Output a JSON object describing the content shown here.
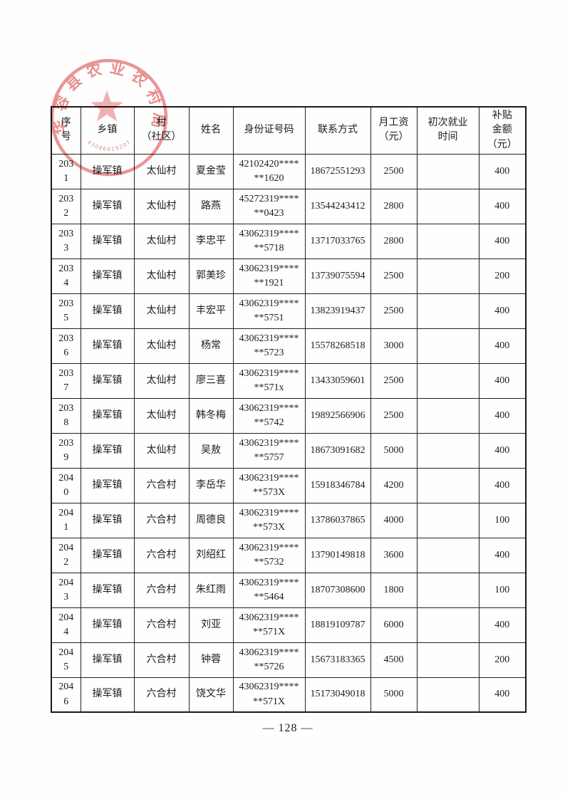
{
  "page": {
    "number_label": "— 128 —"
  },
  "seal": {
    "arc_text": "华容县农业农村局",
    "code": "430866192077",
    "color": "#e05555"
  },
  "table": {
    "column_keys": [
      "no",
      "town",
      "village",
      "name",
      "id",
      "phone",
      "salary",
      "first_employment",
      "subsidy"
    ],
    "headers": [
      "序\n号",
      "乡镇",
      "村\n（社区）",
      "姓名",
      "身份证号码",
      "联系方式",
      "月工资\n（元）",
      "初次就业\n时间",
      "补贴\n金额\n（元）"
    ],
    "rows": [
      {
        "no": "203\n1",
        "town": "操军镇",
        "village": "太仙村",
        "name": "夏金莹",
        "id": "42102420****\n**1620",
        "phone": "18672551293",
        "salary": "2500",
        "first_employment": "",
        "subsidy": "400"
      },
      {
        "no": "203\n2",
        "town": "操军镇",
        "village": "太仙村",
        "name": "路燕",
        "id": "45272319****\n**0423",
        "phone": "13544243412",
        "salary": "2800",
        "first_employment": "",
        "subsidy": "400"
      },
      {
        "no": "203\n3",
        "town": "操军镇",
        "village": "太仙村",
        "name": "李忠平",
        "id": "43062319****\n**5718",
        "phone": "13717033765",
        "salary": "2800",
        "first_employment": "",
        "subsidy": "400"
      },
      {
        "no": "203\n4",
        "town": "操军镇",
        "village": "太仙村",
        "name": "郭美珍",
        "id": "43062319****\n**1921",
        "phone": "13739075594",
        "salary": "2500",
        "first_employment": "",
        "subsidy": "200"
      },
      {
        "no": "203\n5",
        "town": "操军镇",
        "village": "太仙村",
        "name": "丰宏平",
        "id": "43062319****\n**5751",
        "phone": "13823919437",
        "salary": "2500",
        "first_employment": "",
        "subsidy": "400"
      },
      {
        "no": "203\n6",
        "town": "操军镇",
        "village": "太仙村",
        "name": "杨常",
        "id": "43062319****\n**5723",
        "phone": "15578268518",
        "salary": "3000",
        "first_employment": "",
        "subsidy": "400"
      },
      {
        "no": "203\n7",
        "town": "操军镇",
        "village": "太仙村",
        "name": "廖三喜",
        "id": "43062319****\n**571x",
        "phone": "13433059601",
        "salary": "2500",
        "first_employment": "",
        "subsidy": "400"
      },
      {
        "no": "203\n8",
        "town": "操军镇",
        "village": "太仙村",
        "name": "韩冬梅",
        "id": "43062319****\n**5742",
        "phone": "19892566906",
        "salary": "2500",
        "first_employment": "",
        "subsidy": "400"
      },
      {
        "no": "203\n9",
        "town": "操军镇",
        "village": "太仙村",
        "name": "吴敖",
        "id": "43062319****\n**5757",
        "phone": "18673091682",
        "salary": "5000",
        "first_employment": "",
        "subsidy": "400"
      },
      {
        "no": "204\n0",
        "town": "操军镇",
        "village": "六合村",
        "name": "李岳华",
        "id": "43062319****\n**573X",
        "phone": "15918346784",
        "salary": "4200",
        "first_employment": "",
        "subsidy": "400"
      },
      {
        "no": "204\n1",
        "town": "操军镇",
        "village": "六合村",
        "name": "周德良",
        "id": "43062319****\n**573X",
        "phone": "13786037865",
        "salary": "4000",
        "first_employment": "",
        "subsidy": "100"
      },
      {
        "no": "204\n2",
        "town": "操军镇",
        "village": "六合村",
        "name": "刘绍红",
        "id": "43062319****\n**5732",
        "phone": "13790149818",
        "salary": "3600",
        "first_employment": "",
        "subsidy": "400"
      },
      {
        "no": "204\n3",
        "town": "操军镇",
        "village": "六合村",
        "name": "朱红雨",
        "id": "43062319****\n**5464",
        "phone": "18707308600",
        "salary": "1800",
        "first_employment": "",
        "subsidy": "100"
      },
      {
        "no": "204\n4",
        "town": "操军镇",
        "village": "六合村",
        "name": "刘亚",
        "id": "43062319****\n**571X",
        "phone": "18819109787",
        "salary": "6000",
        "first_employment": "",
        "subsidy": "400"
      },
      {
        "no": "204\n5",
        "town": "操军镇",
        "village": "六合村",
        "name": "钟蓉",
        "id": "43062319****\n**5726",
        "phone": "15673183365",
        "salary": "4500",
        "first_employment": "",
        "subsidy": "200"
      },
      {
        "no": "204\n6",
        "town": "操军镇",
        "village": "六合村",
        "name": "饶文华",
        "id": "43062319****\n**571X",
        "phone": "15173049018",
        "salary": "5000",
        "first_employment": "",
        "subsidy": "400"
      }
    ]
  }
}
